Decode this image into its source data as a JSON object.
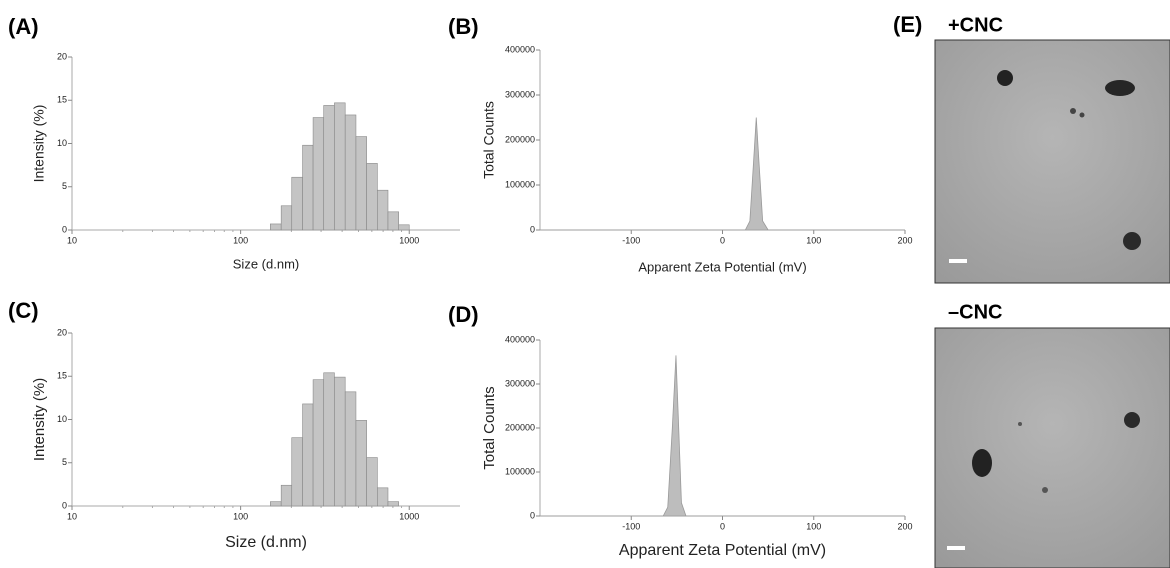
{
  "chart_data": [
    {
      "type": "histogram",
      "panel": "(A)",
      "xscale": "log",
      "xlabel": "Size (d.nm)",
      "ylabel": "Intensity (%)",
      "bins": [
        150,
        174,
        201,
        233,
        269,
        311,
        360,
        417,
        483,
        559,
        647,
        748,
        866,
        1000
      ],
      "values": [
        0.7,
        2.8,
        6.1,
        9.8,
        13.0,
        14.4,
        14.7,
        13.3,
        10.8,
        7.7,
        4.6,
        2.1,
        0.6
      ],
      "color": "#c4c4c4",
      "xlim": [
        10,
        2000
      ],
      "xticks": [
        10,
        100,
        1000
      ],
      "ylim": [
        0,
        20
      ],
      "yticks": [
        0,
        5,
        10,
        15,
        20
      ]
    },
    {
      "type": "area",
      "panel": "(B)",
      "xlabel": "Apparent Zeta Potential (mV)",
      "ylabel": "Total Counts",
      "x": [
        -200,
        25,
        30,
        34,
        37,
        40,
        44,
        50,
        200
      ],
      "values": [
        0,
        0,
        20000,
        150000,
        250000,
        150000,
        20000,
        0,
        0
      ],
      "color": "#bdbdbd",
      "xlim": [
        -200,
        200
      ],
      "xticks": [
        -100,
        0,
        100,
        200
      ],
      "ylim": [
        0,
        400000
      ],
      "yticks": [
        0,
        100000,
        200000,
        300000,
        400000
      ]
    },
    {
      "type": "histogram",
      "panel": "(C)",
      "xscale": "log",
      "xlabel": "Size (d.nm)",
      "ylabel": "Intensity (%)",
      "bins": [
        150,
        174,
        201,
        233,
        269,
        311,
        360,
        417,
        483,
        559,
        647,
        748,
        866
      ],
      "values": [
        0.5,
        2.4,
        7.9,
        11.8,
        14.6,
        15.4,
        14.9,
        13.2,
        9.9,
        5.6,
        2.1,
        0.5
      ],
      "color": "#c4c4c4",
      "xlim": [
        10,
        2000
      ],
      "xticks": [
        10,
        100,
        1000
      ],
      "ylim": [
        0,
        20
      ],
      "yticks": [
        0,
        5,
        10,
        15,
        20
      ]
    },
    {
      "type": "area",
      "panel": "(D)",
      "xlabel": "Apparent Zeta Potential (mV)",
      "ylabel": "Total Counts",
      "x": [
        -200,
        -65,
        -60,
        -55,
        -51,
        -48,
        -45,
        -40,
        200
      ],
      "values": [
        0,
        0,
        20000,
        200000,
        365000,
        200000,
        30000,
        0,
        0
      ],
      "color": "#bdbdbd",
      "xlim": [
        -200,
        200
      ],
      "xticks": [
        -100,
        0,
        100,
        200
      ],
      "ylim": [
        0,
        400000
      ],
      "yticks": [
        0,
        100000,
        200000,
        300000,
        400000
      ]
    }
  ],
  "images": {
    "panel": "(E)",
    "items": [
      {
        "label": "+CNC"
      },
      {
        "label": "–CNC"
      }
    ]
  }
}
